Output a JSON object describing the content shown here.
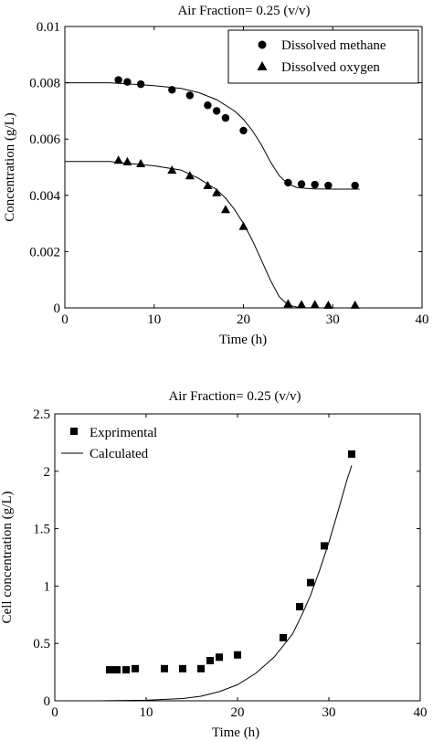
{
  "chart_data": [
    {
      "type": "scatter",
      "title": "Air Fraction= 0.25 (v/v)",
      "xlabel": "Time (h)",
      "ylabel": "Concentration (g/L)",
      "xlim": [
        0,
        40
      ],
      "ylim": [
        0,
        0.01
      ],
      "xticks": [
        "0",
        "10",
        "20",
        "30",
        "40"
      ],
      "yticks": [
        "0",
        "0.002",
        "0.004",
        "0.006",
        "0.008",
        "0.01"
      ],
      "grid": false,
      "legend_position": "top-right",
      "series": [
        {
          "name": "Dissolved methane",
          "marker": "circle",
          "x": [
            6,
            7,
            8.5,
            12,
            14,
            16,
            17,
            18,
            20,
            25,
            26.5,
            28,
            29.5,
            32.5
          ],
          "y": [
            0.0081,
            0.00803,
            0.00795,
            0.00775,
            0.00755,
            0.0072,
            0.007,
            0.00675,
            0.0063,
            0.00445,
            0.0044,
            0.00438,
            0.00435,
            0.00435
          ]
        },
        {
          "name": "Dissolved oxygen",
          "marker": "triangle",
          "x": [
            6,
            7,
            8.5,
            12,
            14,
            16,
            17,
            18,
            20,
            25,
            26.5,
            28,
            29.5,
            32.5
          ],
          "y": [
            0.00525,
            0.0052,
            0.00513,
            0.0049,
            0.0047,
            0.00435,
            0.0041,
            0.0035,
            0.0029,
            0.00015,
            0.00012,
            0.00012,
            0.0001,
            0.0001
          ]
        },
        {
          "type": "line",
          "x": [
            0,
            5,
            10,
            13,
            15,
            17,
            19,
            20,
            21,
            22,
            23,
            24,
            25,
            26,
            27,
            28,
            30,
            33
          ],
          "y": [
            0.008,
            0.008,
            0.0079,
            0.0078,
            0.00765,
            0.0074,
            0.007,
            0.0067,
            0.0063,
            0.0058,
            0.0052,
            0.0047,
            0.0044,
            0.00428,
            0.00425,
            0.00423,
            0.00422,
            0.00422
          ]
        },
        {
          "type": "line",
          "x": [
            0,
            5,
            10,
            13,
            15,
            17,
            18,
            19,
            20,
            21,
            22,
            23,
            24,
            25,
            26,
            27,
            28,
            30,
            33
          ],
          "y": [
            0.0052,
            0.0052,
            0.00505,
            0.0049,
            0.0046,
            0.0042,
            0.0039,
            0.0035,
            0.003,
            0.0024,
            0.0017,
            0.001,
            0.0004,
            0.0001,
            3e-05,
            1e-05,
            0,
            0,
            0
          ]
        }
      ]
    },
    {
      "type": "scatter",
      "title": "Air Fraction= 0.25 (v/v)",
      "xlabel": "Time (h)",
      "ylabel": "Cell concentration (g/L)",
      "xlim": [
        0,
        40
      ],
      "ylim": [
        0,
        2.5
      ],
      "xticks": [
        "0",
        "10",
        "20",
        "30",
        "40"
      ],
      "yticks": [
        "0",
        "0.5",
        "1",
        "1.5",
        "2",
        "2.5"
      ],
      "grid": false,
      "legend_position": "top-left",
      "series": [
        {
          "name": "Exprimental",
          "marker": "square",
          "x": [
            6,
            6.8,
            7.8,
            8.8,
            12,
            14,
            16,
            17,
            18,
            20,
            25,
            26.8,
            28,
            29.5,
            32.5
          ],
          "y": [
            0.27,
            0.27,
            0.27,
            0.28,
            0.28,
            0.28,
            0.28,
            0.35,
            0.38,
            0.4,
            0.55,
            0.82,
            1.03,
            1.35,
            2.15
          ]
        },
        {
          "name": "Calculated",
          "type": "line",
          "x": [
            0,
            5,
            10,
            14,
            16,
            18,
            20,
            22,
            24,
            26,
            27,
            28,
            29,
            30,
            31,
            32,
            32.5
          ],
          "y": [
            0,
            0,
            0.005,
            0.02,
            0.04,
            0.08,
            0.14,
            0.24,
            0.38,
            0.58,
            0.74,
            0.92,
            1.14,
            1.38,
            1.65,
            1.93,
            2.05
          ]
        }
      ]
    }
  ]
}
